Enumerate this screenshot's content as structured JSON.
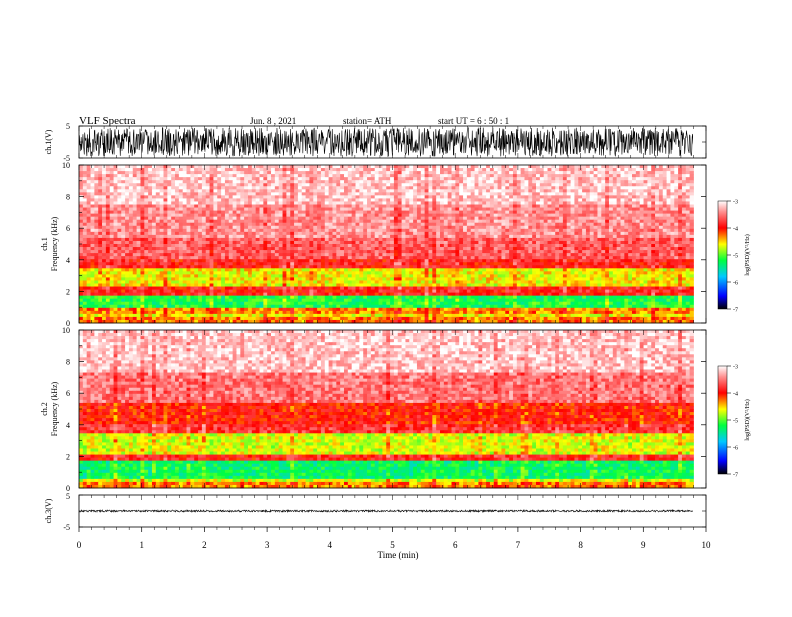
{
  "header": {
    "title": "VLF  Spectra",
    "date": "Jun. 8  , 2021",
    "station": "station= ATH",
    "start": "start  UT  =   6  : 50 : 1"
  },
  "chart_data": [
    {
      "type": "line",
      "panel": "ch1-waveform",
      "ylabel": "ch.1(V)",
      "ylim": [
        -5,
        5
      ],
      "yticks": [
        "5",
        "-5"
      ],
      "xlim": [
        0,
        10
      ],
      "description_values": {
        "typical_amplitude_V": [
          -4.5,
          4.5
        ]
      }
    },
    {
      "type": "heatmap",
      "panel": "ch1-spectrogram",
      "ylabel": "ch.1\nFrequency  (kHz)",
      "ylabel_line1": "ch.1",
      "ylabel_line2": "Frequency  (kHz)",
      "ylim": [
        0,
        10
      ],
      "yticks": [
        "10",
        "8",
        "6",
        "4",
        "2",
        "0"
      ],
      "xlim": [
        0,
        9.8
      ],
      "bands_kHz": [
        {
          "from": 0.0,
          "to": 0.3,
          "level": -4.3
        },
        {
          "from": 0.3,
          "to": 0.6,
          "level": -4.6
        },
        {
          "from": 0.6,
          "to": 0.9,
          "level": -4.3
        },
        {
          "from": 0.9,
          "to": 1.8,
          "level": -5.2
        },
        {
          "from": 1.8,
          "to": 2.3,
          "level": -3.9
        },
        {
          "from": 2.3,
          "to": 3.4,
          "level": -4.6
        },
        {
          "from": 3.4,
          "to": 4.0,
          "level": -3.9
        },
        {
          "from": 4.0,
          "to": 5.3,
          "level": -3.6
        },
        {
          "from": 5.3,
          "to": 7.5,
          "level": -3.4
        },
        {
          "from": 7.5,
          "to": 10.0,
          "level": -3.2
        }
      ],
      "colorbar": {
        "label": "log(PSD)(V²/Hz)",
        "ticks": [
          "-3",
          "-4",
          "-5",
          "-6",
          "-7"
        ],
        "range": [
          -7,
          -3
        ]
      }
    },
    {
      "type": "heatmap",
      "panel": "ch2-spectrogram",
      "ylabel_line1": "ch.2",
      "ylabel_line2": "Frequency  (kHz)",
      "ylim": [
        0,
        10
      ],
      "yticks": [
        "10",
        "8",
        "6",
        "4",
        "2",
        "0"
      ],
      "xlim": [
        0,
        9.8
      ],
      "bands_kHz": [
        {
          "from": 0.0,
          "to": 0.3,
          "level": -4.3
        },
        {
          "from": 0.3,
          "to": 0.6,
          "level": -4.7
        },
        {
          "from": 0.6,
          "to": 1.7,
          "level": -5.3
        },
        {
          "from": 1.7,
          "to": 2.1,
          "level": -3.9
        },
        {
          "from": 2.1,
          "to": 3.4,
          "level": -4.7
        },
        {
          "from": 3.4,
          "to": 4.0,
          "level": -3.8
        },
        {
          "from": 4.0,
          "to": 5.3,
          "level": -4.0
        },
        {
          "from": 5.3,
          "to": 7.3,
          "level": -3.5
        },
        {
          "from": 7.3,
          "to": 10.0,
          "level": -3.2
        }
      ],
      "colorbar": {
        "label": "log(PSD)(V²/Hz)",
        "ticks": [
          "-3",
          "-4",
          "-5",
          "-6",
          "-7"
        ],
        "range": [
          -7,
          -3
        ]
      }
    },
    {
      "type": "line",
      "panel": "ch3-waveform",
      "ylabel": "ch.3(V)",
      "ylim": [
        -5,
        5
      ],
      "yticks": [
        "5",
        "-5"
      ],
      "xlabel": "Time  (min)",
      "xlim": [
        0,
        10
      ],
      "xticks": [
        "0",
        "1",
        "2",
        "3",
        "4",
        "5",
        "6",
        "7",
        "8",
        "9",
        "10"
      ],
      "description_values": {
        "typical_amplitude_V": [
          -0.3,
          0.3
        ]
      }
    }
  ]
}
